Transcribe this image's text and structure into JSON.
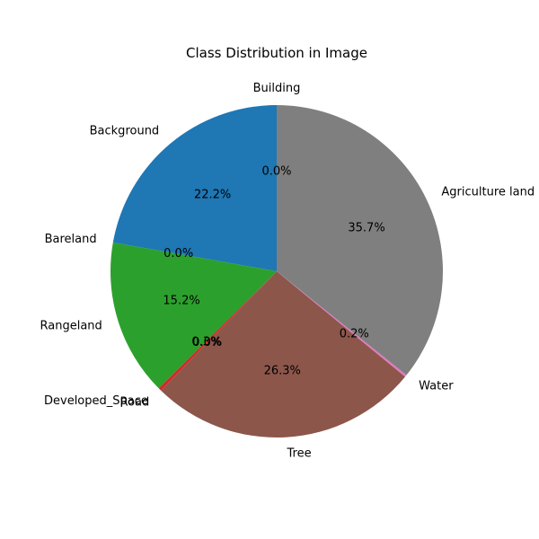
{
  "chart_data": {
    "type": "pie",
    "title": "Class Distribution in Image",
    "start_angle_deg": 90,
    "direction": "counterclockwise",
    "slices": [
      {
        "label": "Background",
        "value": 22.2,
        "pct_text": "22.2%",
        "color": "#1f77b4"
      },
      {
        "label": "Bareland",
        "value": 0.0,
        "pct_text": "0.0%",
        "color": "#ff7f0e"
      },
      {
        "label": "Rangeland",
        "value": 15.2,
        "pct_text": "15.2%",
        "color": "#2ca02c"
      },
      {
        "label": "Developed_Space",
        "value": 0.3,
        "pct_text": "0.3%",
        "color": "#d62728"
      },
      {
        "label": "Road",
        "value": 0.0,
        "pct_text": "0.0%",
        "color": "#9467bd"
      },
      {
        "label": "Tree",
        "value": 26.3,
        "pct_text": "26.3%",
        "color": "#8c564b"
      },
      {
        "label": "Water",
        "value": 0.2,
        "pct_text": "0.2%",
        "color": "#e377c2"
      },
      {
        "label": "Agriculture land",
        "value": 35.7,
        "pct_text": "35.7%",
        "color": "#7f7f7f"
      },
      {
        "label": "Building",
        "value": 0.0,
        "pct_text": "0.0%",
        "color": "#bcbd22"
      }
    ]
  }
}
